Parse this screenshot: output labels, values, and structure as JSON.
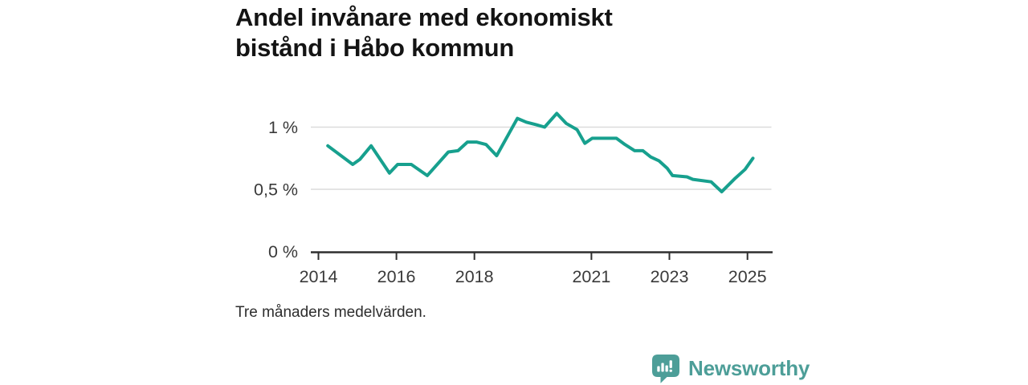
{
  "header": {
    "title_lines": [
      "Andel invånare med ekonomiskt",
      "bistånd i Håbo kommun"
    ]
  },
  "footer": {
    "caption": "Tre månaders medelvärden.",
    "brand": "Newsworthy",
    "brand_icon": "bar-chart-speech-bubble"
  },
  "colors": {
    "line": "#17a08e",
    "brand": "#4d9e98",
    "axis": "#2f2f2f",
    "grid": "#dcdcdc",
    "tick_text": "#3a3a3a",
    "title_text": "#141414"
  },
  "chart_data": {
    "type": "line",
    "title": "Andel invånare med ekonomiskt bistånd i Håbo kommun",
    "subtitle": "",
    "note": "Tre månaders medelvärden.",
    "unit": "%",
    "grid": "horizontal-only",
    "legend": "none",
    "x_axis": {
      "label": "",
      "ticks": [
        "2014",
        "2016",
        "2018",
        "2021",
        "2023",
        "2025"
      ],
      "range": [
        2013.8,
        2025.65
      ]
    },
    "y_axis": {
      "label": "",
      "ticks": [
        {
          "label": "1 %",
          "value": 1
        },
        {
          "label": "0,5 %",
          "value": 0.5
        },
        {
          "label": "0 %",
          "value": 0
        }
      ],
      "gridlines": [
        1,
        0.5
      ],
      "range": [
        0,
        1.2
      ]
    },
    "series": [
      {
        "name": "Andel invånare med ekonomiskt bistånd",
        "color": "#17a08e",
        "points": [
          [
            2014.24,
            0.85
          ],
          [
            2014.88,
            0.7
          ],
          [
            2015.06,
            0.74
          ],
          [
            2015.35,
            0.85
          ],
          [
            2015.82,
            0.63
          ],
          [
            2016.03,
            0.7
          ],
          [
            2016.38,
            0.7
          ],
          [
            2016.79,
            0.61
          ],
          [
            2017.33,
            0.8
          ],
          [
            2017.58,
            0.81
          ],
          [
            2017.82,
            0.88
          ],
          [
            2018.05,
            0.88
          ],
          [
            2018.3,
            0.86
          ],
          [
            2018.57,
            0.77
          ],
          [
            2019.1,
            1.07
          ],
          [
            2019.33,
            1.04
          ],
          [
            2019.58,
            1.02
          ],
          [
            2019.8,
            1.0
          ],
          [
            2020.11,
            1.11
          ],
          [
            2020.35,
            1.03
          ],
          [
            2020.63,
            0.98
          ],
          [
            2020.83,
            0.87
          ],
          [
            2021.02,
            0.91
          ],
          [
            2021.64,
            0.91
          ],
          [
            2021.86,
            0.86
          ],
          [
            2022.11,
            0.81
          ],
          [
            2022.32,
            0.81
          ],
          [
            2022.52,
            0.76
          ],
          [
            2022.73,
            0.73
          ],
          [
            2022.94,
            0.67
          ],
          [
            2023.08,
            0.61
          ],
          [
            2023.45,
            0.6
          ],
          [
            2023.6,
            0.58
          ],
          [
            2024.07,
            0.56
          ],
          [
            2024.34,
            0.48
          ],
          [
            2024.69,
            0.59
          ],
          [
            2024.94,
            0.66
          ],
          [
            2025.14,
            0.75
          ]
        ]
      }
    ]
  }
}
